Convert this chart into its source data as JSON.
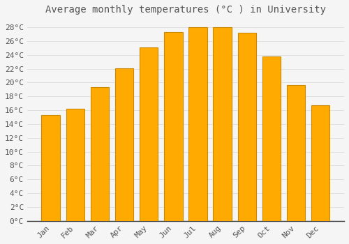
{
  "title": "Average monthly temperatures (°C ) in University",
  "months": [
    "Jan",
    "Feb",
    "Mar",
    "Apr",
    "May",
    "Jun",
    "Jul",
    "Aug",
    "Sep",
    "Oct",
    "Nov",
    "Dec"
  ],
  "values": [
    15.3,
    16.2,
    19.3,
    22.1,
    25.1,
    27.3,
    28.0,
    28.0,
    27.2,
    23.8,
    19.6,
    16.7
  ],
  "bar_color": "#FFAA00",
  "bar_edge_color": "#CC8800",
  "background_color": "#F5F5F5",
  "grid_color": "#DDDDDD",
  "text_color": "#555555",
  "ylim": [
    0,
    29
  ],
  "yticks": [
    0,
    2,
    4,
    6,
    8,
    10,
    12,
    14,
    16,
    18,
    20,
    22,
    24,
    26,
    28
  ],
  "title_fontsize": 10,
  "tick_fontsize": 8,
  "bar_width": 0.75
}
